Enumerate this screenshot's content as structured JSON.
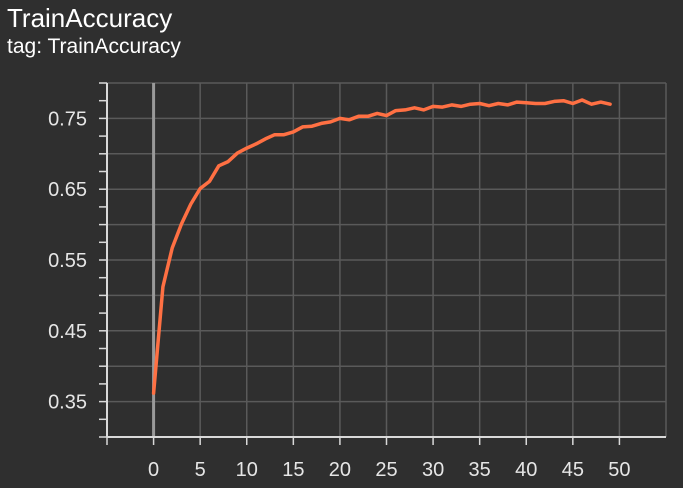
{
  "header": {
    "title": "TrainAccuracy",
    "subtitle": "tag: TrainAccuracy"
  },
  "colors": {
    "background": "#2f2f2f",
    "grid": "#5a5a5a",
    "axis": "#d9d9d9",
    "zero_line": "#9a9a9a",
    "series": "#ff7043"
  },
  "chart_data": {
    "type": "line",
    "title": "TrainAccuracy",
    "subtitle": "tag: TrainAccuracy",
    "xlabel": "",
    "ylabel": "",
    "xlim": [
      -5,
      55
    ],
    "ylim": [
      0.3,
      0.8
    ],
    "x_ticks": [
      0,
      5,
      10,
      15,
      20,
      25,
      30,
      35,
      40,
      45,
      50
    ],
    "y_ticks": [
      0.35,
      0.45,
      0.55,
      0.65,
      0.75
    ],
    "x_tick_labels": [
      "0",
      "5",
      "10",
      "15",
      "20",
      "25",
      "30",
      "35",
      "40",
      "45",
      "50"
    ],
    "y_tick_labels": [
      "0.35",
      "0.45",
      "0.55",
      "0.65",
      "0.75"
    ],
    "grid": true,
    "legend": "none",
    "series": [
      {
        "x": [
          0,
          1,
          2,
          3,
          4,
          5,
          6,
          7,
          8,
          9,
          10,
          11,
          12,
          13,
          14,
          15,
          16,
          17,
          18,
          19,
          20,
          21,
          22,
          23,
          24,
          25,
          26,
          27,
          28,
          29,
          30,
          31,
          32,
          33,
          34,
          35,
          36,
          37,
          38,
          39,
          40,
          41,
          42,
          43,
          44,
          45,
          46,
          47,
          48,
          49
        ],
        "values": [
          0.362,
          0.512,
          0.567,
          0.601,
          0.629,
          0.651,
          0.661,
          0.683,
          0.689,
          0.701,
          0.708,
          0.714,
          0.721,
          0.727,
          0.727,
          0.731,
          0.738,
          0.739,
          0.743,
          0.745,
          0.75,
          0.748,
          0.753,
          0.753,
          0.757,
          0.754,
          0.761,
          0.762,
          0.765,
          0.762,
          0.767,
          0.766,
          0.769,
          0.767,
          0.77,
          0.771,
          0.768,
          0.771,
          0.769,
          0.773,
          0.772,
          0.771,
          0.771,
          0.774,
          0.775,
          0.771,
          0.776,
          0.77,
          0.773,
          0.77
        ]
      }
    ]
  }
}
